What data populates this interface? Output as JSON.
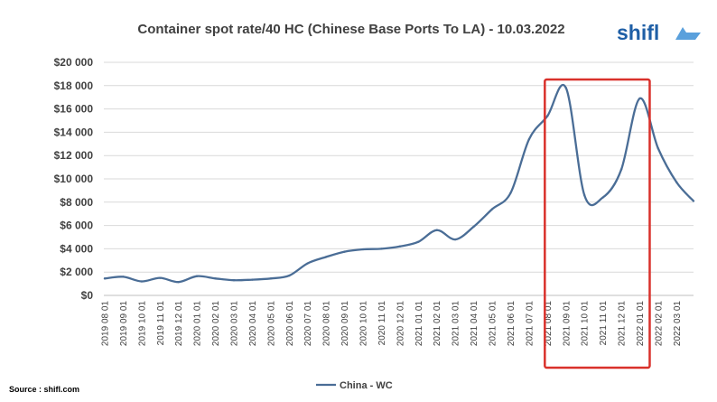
{
  "brand": {
    "name": "shifl",
    "color": "#1f5fa6"
  },
  "source_note": "Source : shifl.com",
  "chart_data": {
    "type": "line",
    "title": "Container spot rate/40 HC (Chinese Base Ports To LA) - 10.03.2022",
    "xlabel": "",
    "ylabel": "",
    "ylim": [
      0,
      20000
    ],
    "yticks": [
      "$0",
      "$2 000",
      "$4 000",
      "$6 000",
      "$8 000",
      "$10 000",
      "$12 000",
      "$14 000",
      "$16 000",
      "$18 000",
      "$20 000"
    ],
    "x": [
      "2019 08 01",
      "2019 09 01",
      "2019 10 01",
      "2019 11 01",
      "2019 12 01",
      "2020 01 01",
      "2020 02 01",
      "2020 03 01",
      "2020 04 01",
      "2020 05 01",
      "2020 06 01",
      "2020 07 01",
      "2020 08 01",
      "2020 09 01",
      "2020 10 01",
      "2020 11 01",
      "2020 12 01",
      "2021 01 01",
      "2021 02 01",
      "2021 03 01",
      "2021 04 01",
      "2021 05 01",
      "2021 06 01",
      "2021 07 01",
      "2021 08 01",
      "2021 09 01",
      "2021 10 01",
      "2021 11 01",
      "2021 12 01",
      "2022 01 01",
      "2022 02 01",
      "2022 03 01"
    ],
    "series": [
      {
        "name": "China - WC",
        "color": "#4a6d96",
        "values": [
          1450,
          1600,
          1200,
          1500,
          1150,
          1650,
          1450,
          1300,
          1350,
          1450,
          1700,
          2750,
          3300,
          3750,
          3950,
          4000,
          4200,
          4600,
          5600,
          4800,
          5900,
          7400,
          8800,
          13400,
          15400,
          17800,
          8600,
          8400,
          10800,
          16900,
          12600,
          9700
        ],
        "end_value": 8100
      }
    ],
    "grid": true,
    "legend": "bottom",
    "highlight": {
      "from": "2021 08 01",
      "to": "2022 01 01",
      "color": "#d9312b"
    }
  }
}
